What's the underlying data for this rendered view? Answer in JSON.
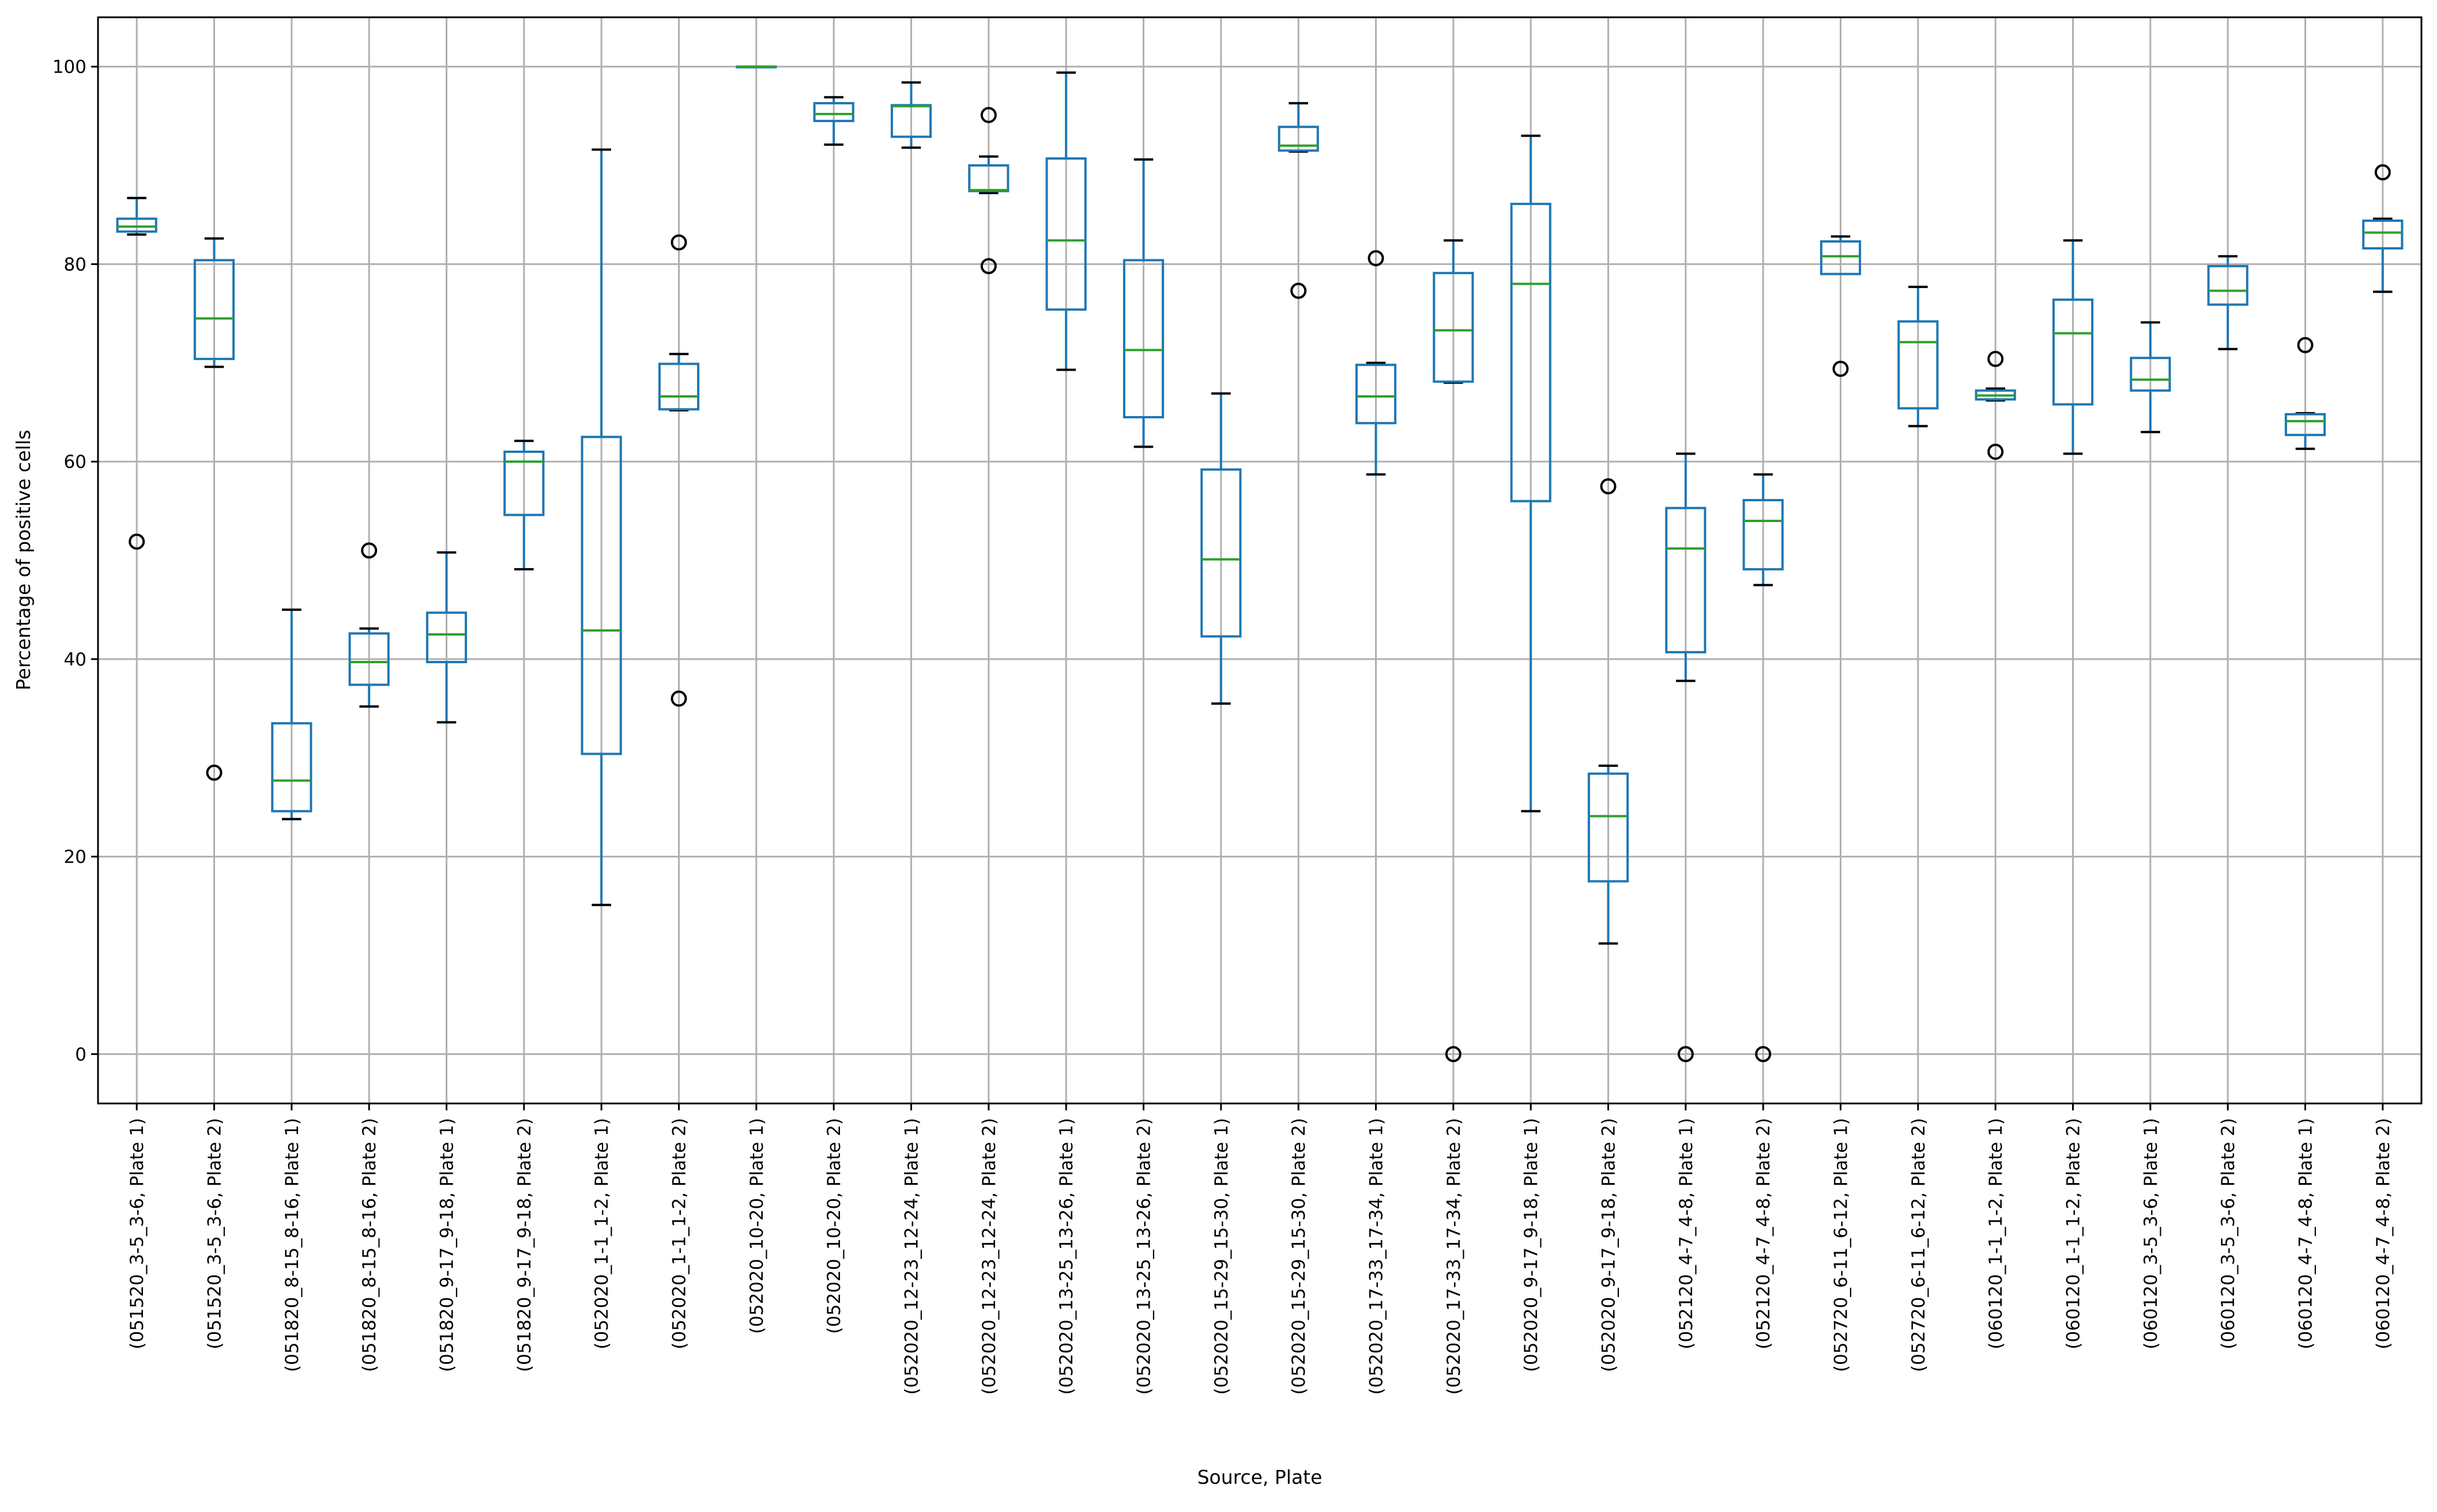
{
  "chart_data": {
    "type": "boxplot",
    "xlabel": "Source, Plate",
    "ylabel": "Percentage of positive cells",
    "ylim": [
      -5,
      105
    ],
    "yticks": [
      0,
      20,
      40,
      60,
      80,
      100
    ],
    "grid": true,
    "colors": {
      "box": "#1f77b4",
      "median": "#2ca02c",
      "cap": "#000000",
      "flier": "#000000",
      "grid": "#b0b0b0"
    },
    "categories": [
      "(051520_3-5_3-6, Plate 1)",
      "(051520_3-5_3-6, Plate 2)",
      "(051820_8-15_8-16, Plate 1)",
      "(051820_8-15_8-16, Plate 2)",
      "(051820_9-17_9-18, Plate 1)",
      "(051820_9-17_9-18, Plate 2)",
      "(052020_1-1_1-2, Plate 1)",
      "(052020_1-1_1-2, Plate 2)",
      "(052020_10-20, Plate 1)",
      "(052020_10-20, Plate 2)",
      "(052020_12-23_12-24, Plate 1)",
      "(052020_12-23_12-24, Plate 2)",
      "(052020_13-25_13-26, Plate 1)",
      "(052020_13-25_13-26, Plate 2)",
      "(052020_15-29_15-30, Plate 1)",
      "(052020_15-29_15-30, Plate 2)",
      "(052020_17-33_17-34, Plate 1)",
      "(052020_17-33_17-34, Plate 2)",
      "(052020_9-17_9-18, Plate 1)",
      "(052020_9-17_9-18, Plate 2)",
      "(052120_4-7_4-8, Plate 1)",
      "(052120_4-7_4-8, Plate 2)",
      "(052720_6-11_6-12, Plate 1)",
      "(052720_6-11_6-12, Plate 2)",
      "(060120_1-1_1-2, Plate 1)",
      "(060120_1-1_1-2, Plate 2)",
      "(060120_3-5_3-6, Plate 1)",
      "(060120_3-5_3-6, Plate 2)",
      "(060120_4-7_4-8, Plate 1)",
      "(060120_4-7_4-8, Plate 2)"
    ],
    "boxes": [
      {
        "whislo": 83.0,
        "q1": 83.3,
        "med": 83.8,
        "q3": 84.6,
        "whishi": 86.7,
        "fliers": [
          51.9
        ]
      },
      {
        "whislo": 69.6,
        "q1": 70.4,
        "med": 74.5,
        "q3": 80.4,
        "whishi": 82.6,
        "fliers": [
          28.5
        ]
      },
      {
        "whislo": 23.8,
        "q1": 24.6,
        "med": 27.7,
        "q3": 33.5,
        "whishi": 45.0,
        "fliers": []
      },
      {
        "whislo": 35.2,
        "q1": 37.4,
        "med": 39.7,
        "q3": 42.6,
        "whishi": 43.1,
        "fliers": [
          51.0
        ]
      },
      {
        "whislo": 33.6,
        "q1": 39.7,
        "med": 42.5,
        "q3": 44.7,
        "whishi": 50.8,
        "fliers": []
      },
      {
        "whislo": 49.1,
        "q1": 54.6,
        "med": 60.0,
        "q3": 61.0,
        "whishi": 62.1,
        "fliers": []
      },
      {
        "whislo": 15.1,
        "q1": 30.4,
        "med": 42.9,
        "q3": 62.5,
        "whishi": 91.6,
        "fliers": []
      },
      {
        "whislo": 65.2,
        "q1": 65.3,
        "med": 66.6,
        "q3": 69.9,
        "whishi": 70.9,
        "fliers": [
          82.2,
          36.0
        ]
      },
      {
        "whislo": 100.0,
        "q1": 100.0,
        "med": 100.0,
        "q3": 100.0,
        "whishi": 100.0,
        "fliers": []
      },
      {
        "whislo": 92.1,
        "q1": 94.5,
        "med": 95.2,
        "q3": 96.3,
        "whishi": 96.9,
        "fliers": []
      },
      {
        "whislo": 91.8,
        "q1": 92.9,
        "med": 96.0,
        "q3": 96.1,
        "whishi": 98.4,
        "fliers": []
      },
      {
        "whislo": 87.2,
        "q1": 87.4,
        "med": 87.5,
        "q3": 90.0,
        "whishi": 90.9,
        "fliers": [
          95.1,
          79.8
        ]
      },
      {
        "whislo": 69.3,
        "q1": 75.4,
        "med": 82.4,
        "q3": 90.7,
        "whishi": 99.4,
        "fliers": []
      },
      {
        "whislo": 61.5,
        "q1": 64.5,
        "med": 71.3,
        "q3": 80.4,
        "whishi": 90.6,
        "fliers": []
      },
      {
        "whislo": 35.5,
        "q1": 42.3,
        "med": 50.1,
        "q3": 59.2,
        "whishi": 66.9,
        "fliers": []
      },
      {
        "whislo": 91.4,
        "q1": 91.5,
        "med": 92.0,
        "q3": 93.9,
        "whishi": 96.3,
        "fliers": [
          77.3
        ]
      },
      {
        "whislo": 58.7,
        "q1": 63.9,
        "med": 66.6,
        "q3": 69.8,
        "whishi": 70.0,
        "fliers": [
          80.6
        ]
      },
      {
        "whislo": 68.0,
        "q1": 68.1,
        "med": 73.3,
        "q3": 79.1,
        "whishi": 82.4,
        "fliers": [
          0.0
        ]
      },
      {
        "whislo": 24.6,
        "q1": 56.0,
        "med": 78.0,
        "q3": 86.1,
        "whishi": 93.0,
        "fliers": []
      },
      {
        "whislo": 11.2,
        "q1": 17.5,
        "med": 24.1,
        "q3": 28.4,
        "whishi": 29.2,
        "fliers": [
          57.5
        ]
      },
      {
        "whislo": 37.8,
        "q1": 40.7,
        "med": 51.2,
        "q3": 55.3,
        "whishi": 60.8,
        "fliers": [
          0.0
        ]
      },
      {
        "whislo": 47.5,
        "q1": 49.1,
        "med": 54.0,
        "q3": 56.1,
        "whishi": 58.7,
        "fliers": [
          0.0
        ]
      },
      {
        "whislo": 79.0,
        "q1": 79.0,
        "med": 80.8,
        "q3": 82.3,
        "whishi": 82.8,
        "fliers": [
          69.4
        ]
      },
      {
        "whislo": 63.6,
        "q1": 65.4,
        "med": 72.1,
        "q3": 74.2,
        "whishi": 77.7,
        "fliers": []
      },
      {
        "whislo": 66.2,
        "q1": 66.3,
        "med": 66.7,
        "q3": 67.2,
        "whishi": 67.4,
        "fliers": [
          70.4,
          61.0
        ]
      },
      {
        "whislo": 60.8,
        "q1": 65.8,
        "med": 73.0,
        "q3": 76.4,
        "whishi": 82.4,
        "fliers": []
      },
      {
        "whislo": 63.0,
        "q1": 67.2,
        "med": 68.3,
        "q3": 70.5,
        "whishi": 74.1,
        "fliers": []
      },
      {
        "whislo": 71.4,
        "q1": 75.9,
        "med": 77.3,
        "q3": 79.8,
        "whishi": 80.8,
        "fliers": []
      },
      {
        "whislo": 61.3,
        "q1": 62.7,
        "med": 64.1,
        "q3": 64.8,
        "whishi": 64.9,
        "fliers": [
          71.8
        ]
      },
      {
        "whislo": 77.2,
        "q1": 81.6,
        "med": 83.2,
        "q3": 84.4,
        "whishi": 84.6,
        "fliers": [
          89.3
        ]
      }
    ]
  }
}
